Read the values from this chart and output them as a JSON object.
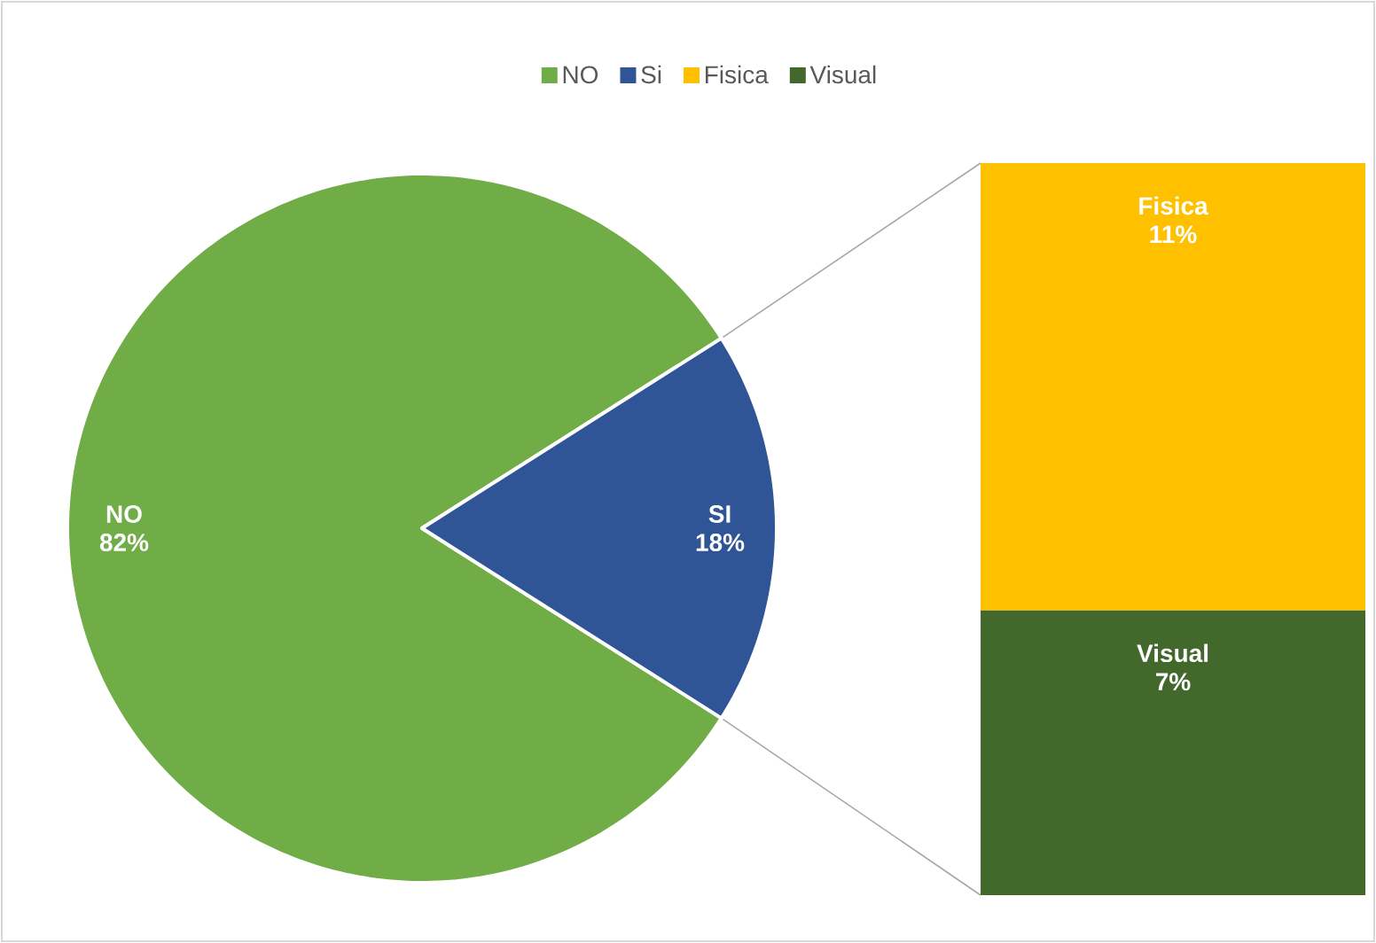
{
  "chart_data": [
    {
      "type": "pie",
      "categories": [
        "NO",
        "Si"
      ],
      "values": [
        82,
        18
      ],
      "colors": [
        "#70ad47",
        "#2f5597"
      ],
      "value_labels": [
        "NO 82%",
        "SI 18%"
      ],
      "legend": "top"
    },
    {
      "type": "bar",
      "stacked": true,
      "categories": [
        null
      ],
      "legend": "top",
      "series": [
        {
          "name": "Visual",
          "color": "#43682b",
          "values": [
            7
          ],
          "value_labels": [
            "Visual 7%"
          ]
        },
        {
          "name": "Fisica",
          "color": "#ffc000",
          "values": [
            11
          ],
          "value_labels": [
            "Fisica 11%"
          ]
        }
      ]
    }
  ]
}
